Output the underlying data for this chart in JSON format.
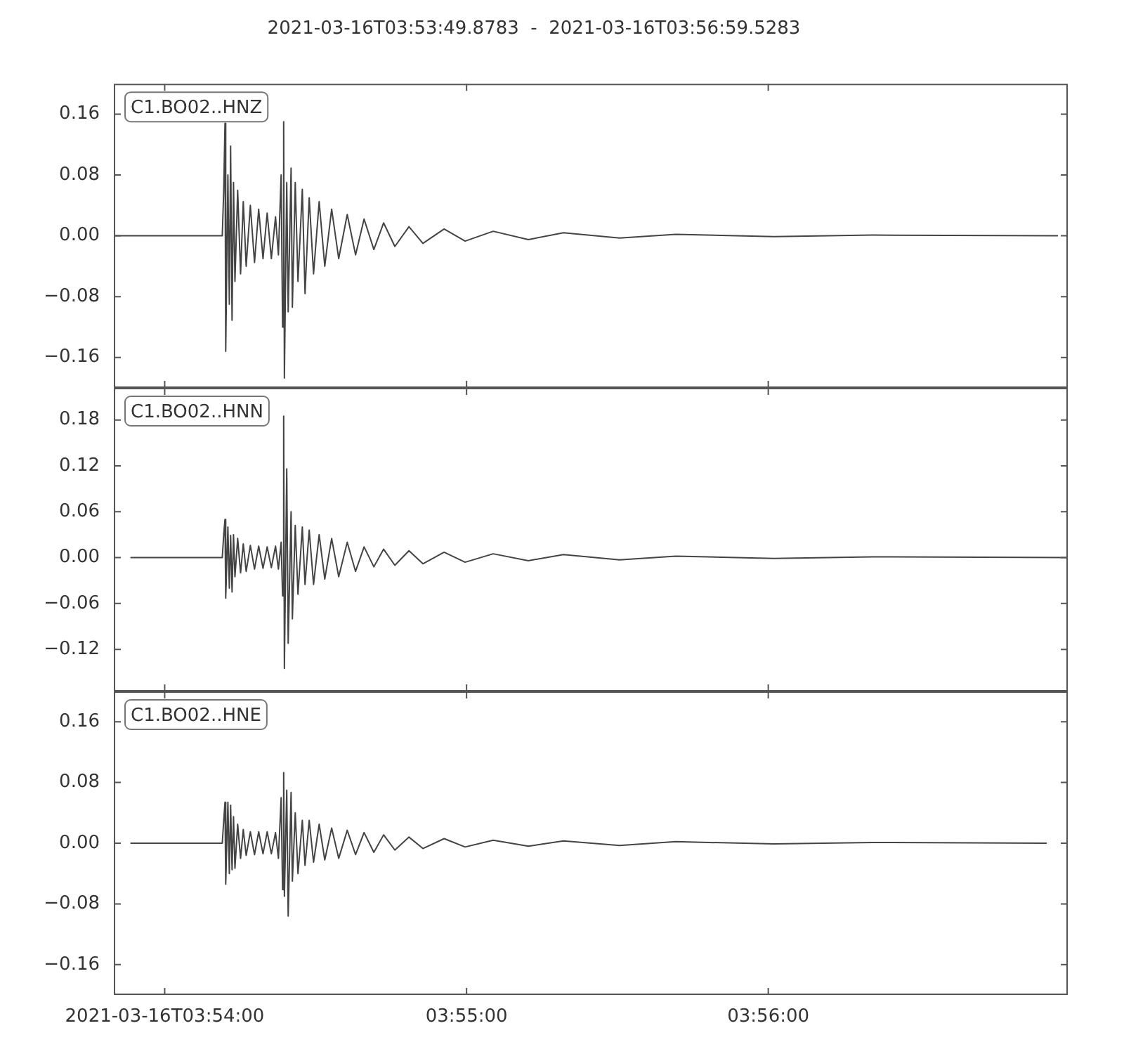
{
  "chart_data": [
    {
      "type": "line",
      "title": "2021-03-16T03:53:49.8783  -  2021-03-16T03:56:59.5283",
      "annotations": [
        "C1.BO02..HNZ"
      ],
      "tick_labels": "y",
      "xlim": [
        3.89719,
        3.94987
      ],
      "xticks": [
        {
          "value": 3.9,
          "label": null
        },
        {
          "value": 3.91667,
          "label": null
        },
        {
          "value": 3.93333,
          "label": null
        }
      ],
      "ylim": [
        -0.2,
        0.2
      ],
      "yticks": [
        {
          "value": -0.16,
          "label": "−0.16"
        },
        {
          "value": -0.08,
          "label": "−0.08"
        },
        {
          "value": 0,
          "label": "0.00"
        },
        {
          "value": 0.08,
          "label": "0.08"
        },
        {
          "value": 0.16,
          "label": "0.16"
        }
      ],
      "series": [
        {
          "color": "#444444",
          "x": [
            3.89719,
            3.90318,
            3.90326,
            3.90333,
            3.90337,
            3.90349,
            3.90357,
            3.90364,
            3.90372,
            3.9038,
            3.90388,
            3.90403,
            3.90419,
            3.90434,
            3.9045,
            3.90473,
            3.90496,
            3.90519,
            3.90543,
            3.90566,
            3.90589,
            3.90612,
            3.90628,
            3.90643,
            3.90651,
            3.90657,
            3.90661,
            3.90674,
            3.90682,
            3.90698,
            3.90705,
            3.90721,
            3.90736,
            3.9076,
            3.90775,
            3.90798,
            3.90822,
            3.90853,
            3.90884,
            3.90922,
            3.90961,
            3.91008,
            3.91054,
            3.91101,
            3.91155,
            3.91209,
            3.91271,
            3.91349,
            3.91426,
            3.91543,
            3.91659,
            3.91814,
            3.92008,
            3.92202,
            3.92512,
            3.92822,
            3.93364,
            3.93907,
            3.9493
          ],
          "values": [
            0,
            0,
            0.06,
            0.148,
            -0.152,
            0.08,
            -0.09,
            0.118,
            -0.111,
            0.07,
            -0.06,
            0.06,
            -0.05,
            0.045,
            -0.04,
            0.04,
            -0.035,
            0.035,
            -0.03,
            0.03,
            -0.03,
            0.025,
            -0.025,
            0.08,
            -0.12,
            0.15,
            -0.187,
            0.07,
            -0.1,
            0.089,
            -0.094,
            0.07,
            -0.06,
            0.061,
            -0.076,
            0.05,
            -0.05,
            0.045,
            -0.04,
            0.035,
            -0.03,
            0.028,
            -0.025,
            0.022,
            -0.018,
            0.017,
            -0.014,
            0.012,
            -0.01,
            0.009,
            -0.007,
            0.006,
            -0.005,
            0.004,
            -0.003,
            0.002,
            -0.001,
            0.001,
            0
          ]
        }
      ]
    },
    {
      "type": "line",
      "annotations": [
        "C1.BO02..HNN"
      ],
      "tick_labels": "y",
      "xlim": [
        3.89719,
        3.94987
      ],
      "xticks": [
        {
          "value": 3.9,
          "label": null
        },
        {
          "value": 3.91667,
          "label": null
        },
        {
          "value": 3.93333,
          "label": null
        }
      ],
      "ylim": [
        -0.175,
        0.222
      ],
      "yticks": [
        {
          "value": -0.12,
          "label": "−0.12"
        },
        {
          "value": -0.06,
          "label": "−0.06"
        },
        {
          "value": 0,
          "label": "0.00"
        },
        {
          "value": 0.06,
          "label": "0.06"
        },
        {
          "value": 0.12,
          "label": "0.12"
        },
        {
          "value": 0.18,
          "label": "0.18"
        }
      ],
      "series": [
        {
          "color": "#444444",
          "x": [
            3.89814,
            3.90318,
            3.90326,
            3.90333,
            3.90337,
            3.90349,
            3.90357,
            3.90364,
            3.90372,
            3.9038,
            3.90388,
            3.90403,
            3.90419,
            3.90434,
            3.9045,
            3.90473,
            3.90496,
            3.90519,
            3.90543,
            3.90566,
            3.90589,
            3.90612,
            3.90628,
            3.90643,
            3.90651,
            3.90657,
            3.90661,
            3.90674,
            3.90682,
            3.90698,
            3.90705,
            3.90721,
            3.90736,
            3.9076,
            3.90775,
            3.90798,
            3.90822,
            3.90853,
            3.90884,
            3.90922,
            3.90961,
            3.91008,
            3.91054,
            3.91101,
            3.91155,
            3.91209,
            3.91271,
            3.91349,
            3.91426,
            3.91543,
            3.91659,
            3.91814,
            3.92008,
            3.92202,
            3.92512,
            3.92822,
            3.93364,
            3.93907,
            3.94987
          ],
          "values": [
            0,
            0,
            0.03,
            0.05,
            -0.053,
            0.04,
            -0.04,
            0.029,
            -0.045,
            0.03,
            -0.025,
            0.025,
            -0.02,
            0.018,
            -0.018,
            0.016,
            -0.015,
            0.015,
            -0.014,
            0.014,
            -0.013,
            0.015,
            -0.015,
            0.02,
            -0.05,
            0.185,
            -0.145,
            0.116,
            -0.112,
            0.06,
            -0.08,
            0.042,
            -0.048,
            0.04,
            -0.035,
            0.036,
            -0.035,
            0.03,
            -0.028,
            0.025,
            -0.025,
            0.02,
            -0.018,
            0.014,
            -0.012,
            0.011,
            -0.01,
            0.009,
            -0.008,
            0.007,
            -0.006,
            0.005,
            -0.004,
            0.004,
            -0.003,
            0.002,
            -0.001,
            0.001,
            0
          ]
        }
      ]
    },
    {
      "type": "line",
      "annotations": [
        "C1.BO02..HNE"
      ],
      "xlim": [
        3.89719,
        3.94987
      ],
      "xticks": [
        {
          "value": 3.9,
          "label": "2021-03-16T03:54:00"
        },
        {
          "value": 3.91667,
          "label": "03:55:00"
        },
        {
          "value": 3.93333,
          "label": "03:56:00"
        }
      ],
      "ylim": [
        -0.2,
        0.2
      ],
      "yticks": [
        {
          "value": -0.16,
          "label": "−0.16"
        },
        {
          "value": -0.08,
          "label": "−0.08"
        },
        {
          "value": 0,
          "label": "0.00"
        },
        {
          "value": 0.08,
          "label": "0.08"
        },
        {
          "value": 0.16,
          "label": "0.16"
        }
      ],
      "series": [
        {
          "color": "#444444",
          "x": [
            3.89814,
            3.90318,
            3.90326,
            3.90333,
            3.90337,
            3.90349,
            3.90357,
            3.90364,
            3.90372,
            3.9038,
            3.90388,
            3.90403,
            3.90419,
            3.90434,
            3.9045,
            3.90473,
            3.90496,
            3.90519,
            3.90543,
            3.90566,
            3.90589,
            3.90612,
            3.90628,
            3.90643,
            3.90651,
            3.90657,
            3.90661,
            3.90674,
            3.90682,
            3.90698,
            3.90705,
            3.90721,
            3.90736,
            3.9076,
            3.90775,
            3.90798,
            3.90822,
            3.90853,
            3.90884,
            3.90922,
            3.90961,
            3.91008,
            3.91054,
            3.91101,
            3.91155,
            3.91209,
            3.91271,
            3.91349,
            3.91426,
            3.91543,
            3.91659,
            3.91814,
            3.92008,
            3.92202,
            3.92512,
            3.92822,
            3.93364,
            3.93907,
            3.94868
          ],
          "values": [
            0,
            0,
            0.03,
            0.054,
            -0.054,
            0.054,
            -0.04,
            0.05,
            -0.035,
            0.035,
            -0.033,
            0.025,
            -0.02,
            0.018,
            -0.016,
            0.015,
            -0.015,
            0.015,
            -0.014,
            0.015,
            -0.014,
            0.014,
            -0.02,
            0.06,
            -0.061,
            0.093,
            -0.07,
            0.07,
            -0.096,
            0.067,
            -0.05,
            0.04,
            -0.04,
            0.03,
            -0.029,
            0.03,
            -0.025,
            0.025,
            -0.022,
            0.02,
            -0.02,
            0.017,
            -0.015,
            0.014,
            -0.012,
            0.011,
            -0.009,
            0.008,
            -0.007,
            0.006,
            -0.005,
            0.004,
            -0.004,
            0.003,
            -0.003,
            0.002,
            -0.001,
            0.001,
            0
          ]
        }
      ]
    }
  ]
}
